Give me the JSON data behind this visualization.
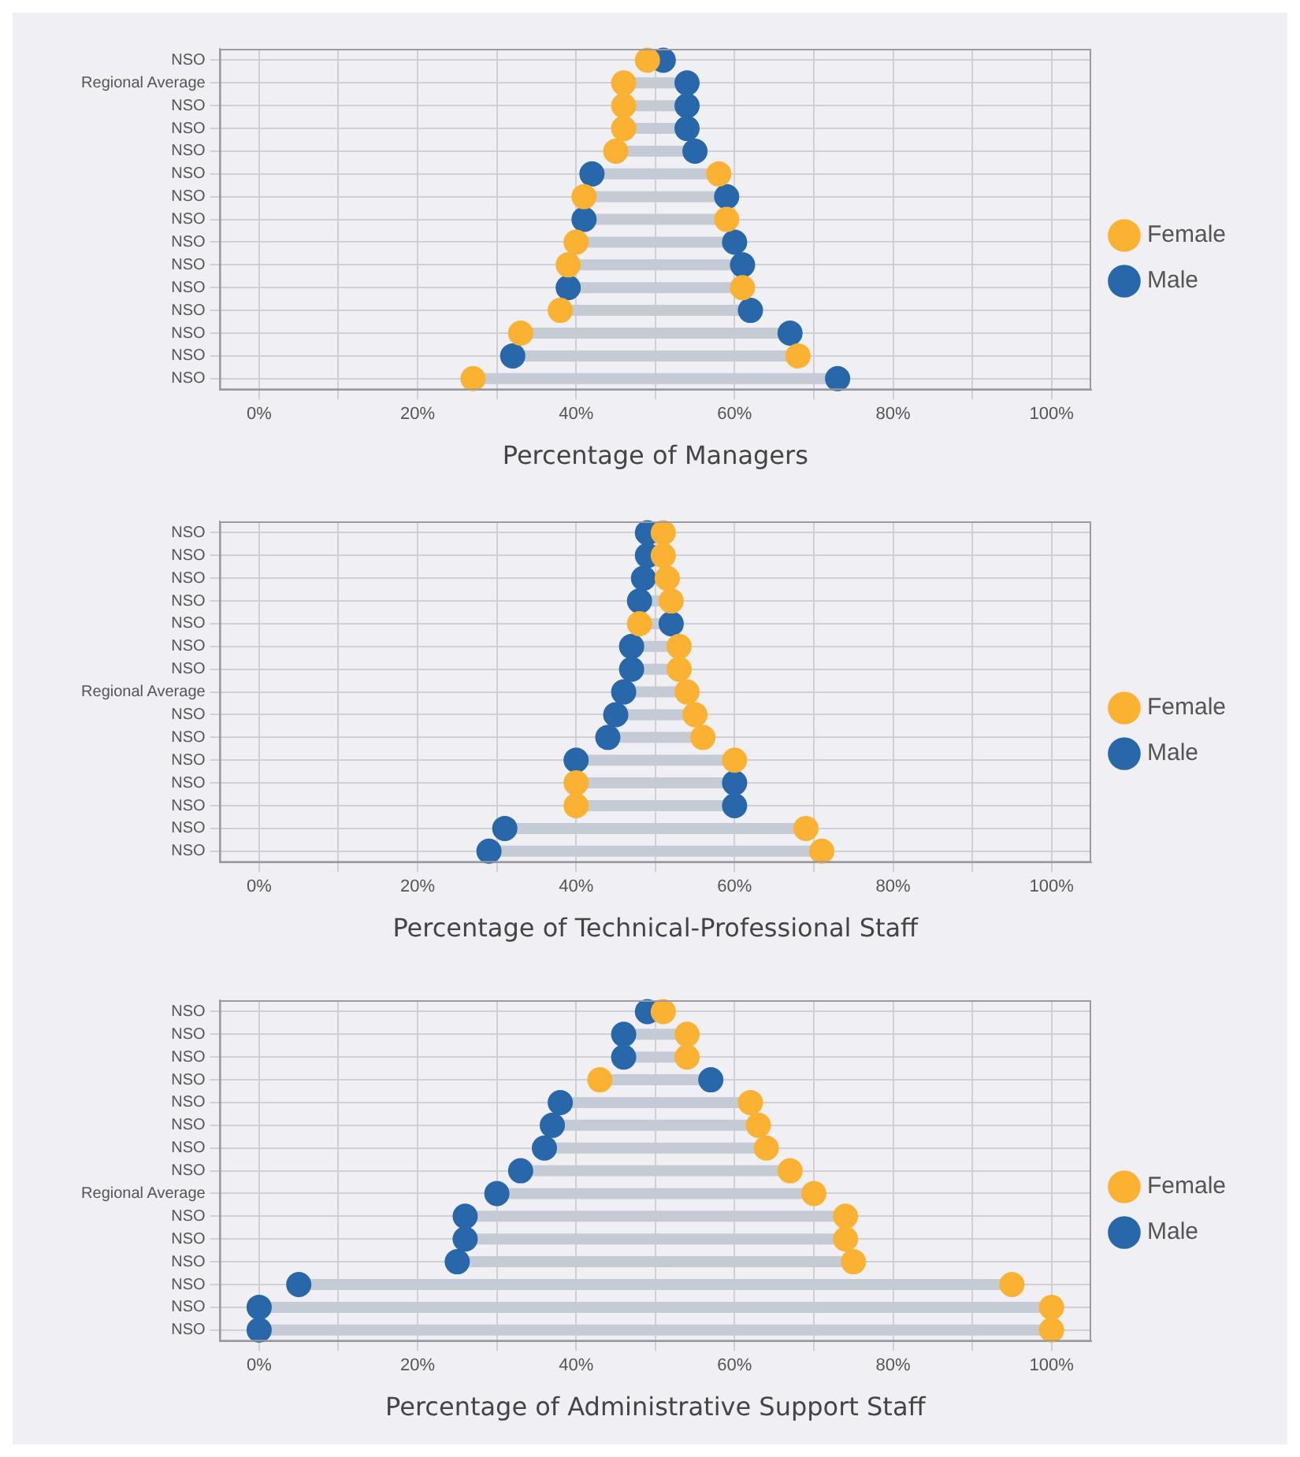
{
  "chart_data": [
    {
      "type": "scatter",
      "orientation": "horizontal",
      "xlabel": "Percentage of Managers",
      "categories": [
        "NSO",
        "Regional Average",
        "NSO",
        "NSO",
        "NSO",
        "NSO",
        "NSO",
        "NSO",
        "NSO",
        "NSO",
        "NSO",
        "NSO",
        "NSO",
        "NSO",
        "NSO"
      ],
      "series": [
        {
          "name": "Female",
          "color": "#fbb131",
          "values": [
            49,
            46,
            46,
            46,
            45,
            58,
            41,
            59,
            40,
            39,
            61,
            38,
            33,
            68,
            27
          ]
        },
        {
          "name": "Male",
          "color": "#2767aa",
          "values": [
            51,
            54,
            54,
            54,
            55,
            42,
            59,
            41,
            60,
            61,
            39,
            62,
            67,
            32,
            73
          ]
        }
      ],
      "xlim": [
        -5,
        105
      ],
      "xticks": [
        {
          "value": 0,
          "label": "0%"
        },
        {
          "value": 10,
          "label": null
        },
        {
          "value": 20,
          "label": "20%"
        },
        {
          "value": 30,
          "label": null
        },
        {
          "value": 40,
          "label": "40%"
        },
        {
          "value": 50,
          "label": null
        },
        {
          "value": 60,
          "label": "60%"
        },
        {
          "value": 70,
          "label": null
        },
        {
          "value": 80,
          "label": "80%"
        },
        {
          "value": 90,
          "label": null
        },
        {
          "value": 100,
          "label": "100%"
        }
      ],
      "grid": true,
      "legend": "right",
      "marker": "circle"
    },
    {
      "type": "scatter",
      "orientation": "horizontal",
      "xlabel": "Percentage of Technical-Professional Staff",
      "categories": [
        "NSO",
        "NSO",
        "NSO",
        "NSO",
        "NSO",
        "NSO",
        "NSO",
        "Regional Average",
        "NSO",
        "NSO",
        "NSO",
        "NSO",
        "NSO",
        "NSO",
        "NSO"
      ],
      "series": [
        {
          "name": "Female",
          "color": "#fbb131",
          "values": [
            51,
            51,
            51.5,
            52,
            48,
            53,
            53,
            54,
            55,
            56,
            60,
            40,
            40,
            69,
            71
          ]
        },
        {
          "name": "Male",
          "color": "#2767aa",
          "values": [
            49,
            49,
            48.5,
            48,
            52,
            47,
            47,
            46,
            45,
            44,
            40,
            60,
            60,
            31,
            29
          ]
        }
      ],
      "xlim": [
        -5,
        105
      ],
      "xticks": [
        {
          "value": 0,
          "label": "0%"
        },
        {
          "value": 10,
          "label": null
        },
        {
          "value": 20,
          "label": "20%"
        },
        {
          "value": 30,
          "label": null
        },
        {
          "value": 40,
          "label": "40%"
        },
        {
          "value": 50,
          "label": null
        },
        {
          "value": 60,
          "label": "60%"
        },
        {
          "value": 70,
          "label": null
        },
        {
          "value": 80,
          "label": "80%"
        },
        {
          "value": 90,
          "label": null
        },
        {
          "value": 100,
          "label": "100%"
        }
      ],
      "grid": true,
      "legend": "right",
      "marker": "circle"
    },
    {
      "type": "scatter",
      "orientation": "horizontal",
      "xlabel": "Percentage of Administrative Support Staff",
      "categories": [
        "NSO",
        "NSO",
        "NSO",
        "NSO",
        "NSO",
        "NSO",
        "NSO",
        "NSO",
        "Regional Average",
        "NSO",
        "NSO",
        "NSO",
        "NSO",
        "NSO",
        "NSO"
      ],
      "series": [
        {
          "name": "Female",
          "color": "#fbb131",
          "values": [
            51,
            54,
            54,
            43,
            62,
            63,
            64,
            67,
            70,
            74,
            74,
            75,
            95,
            100,
            100
          ]
        },
        {
          "name": "Male",
          "color": "#2767aa",
          "values": [
            49,
            46,
            46,
            57,
            38,
            37,
            36,
            33,
            30,
            26,
            26,
            25,
            5,
            0,
            0
          ]
        }
      ],
      "xlim": [
        -5,
        105
      ],
      "xticks": [
        {
          "value": 0,
          "label": "0%"
        },
        {
          "value": 10,
          "label": null
        },
        {
          "value": 20,
          "label": "20%"
        },
        {
          "value": 30,
          "label": null
        },
        {
          "value": 40,
          "label": "40%"
        },
        {
          "value": 50,
          "label": null
        },
        {
          "value": 60,
          "label": "60%"
        },
        {
          "value": 70,
          "label": null
        },
        {
          "value": 80,
          "label": "80%"
        },
        {
          "value": 90,
          "label": null
        },
        {
          "value": 100,
          "label": "100%"
        }
      ],
      "grid": true,
      "legend": "right",
      "marker": "circle"
    }
  ]
}
